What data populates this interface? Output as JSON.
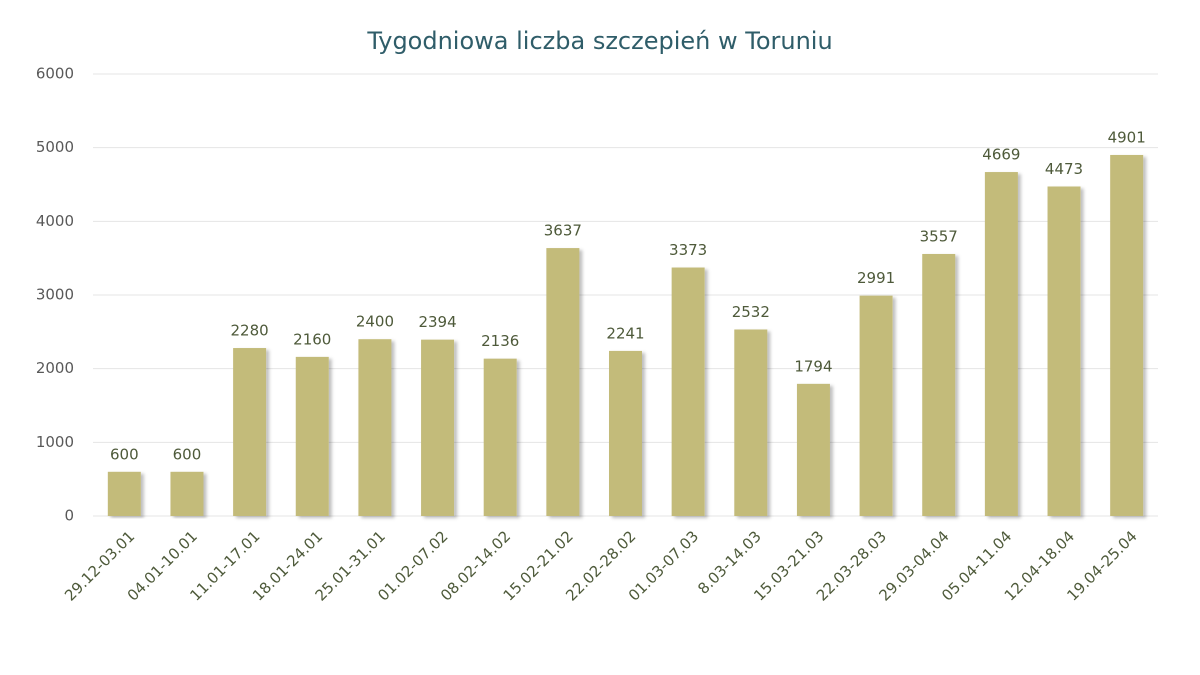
{
  "chart_data": {
    "type": "bar",
    "title": "Tygodniowa liczba szczepień w Toruniu",
    "categories": [
      "29.12-03.01",
      "04.01-10.01",
      "11.01-17.01",
      "18.01-24.01",
      "25.01-31.01",
      "01.02-07.02",
      "08.02-14.02",
      "15.02-21.02",
      "22.02-28.02",
      "01.03-07.03",
      "8.03-14.03",
      "15.03-21.03",
      "22.03-28.03",
      "29.03-04.04",
      "05.04-11.04",
      "12.04-18.04",
      "19.04-25.04"
    ],
    "values": [
      600,
      600,
      2280,
      2160,
      2400,
      2394,
      2136,
      3637,
      2241,
      3373,
      2532,
      1794,
      2991,
      3557,
      4669,
      4473,
      4901
    ],
    "color": "#c3bb7a",
    "ylim": [
      0,
      6000
    ],
    "yticks": [
      0,
      1000,
      2000,
      3000,
      4000,
      5000,
      6000
    ],
    "grid": true
  }
}
